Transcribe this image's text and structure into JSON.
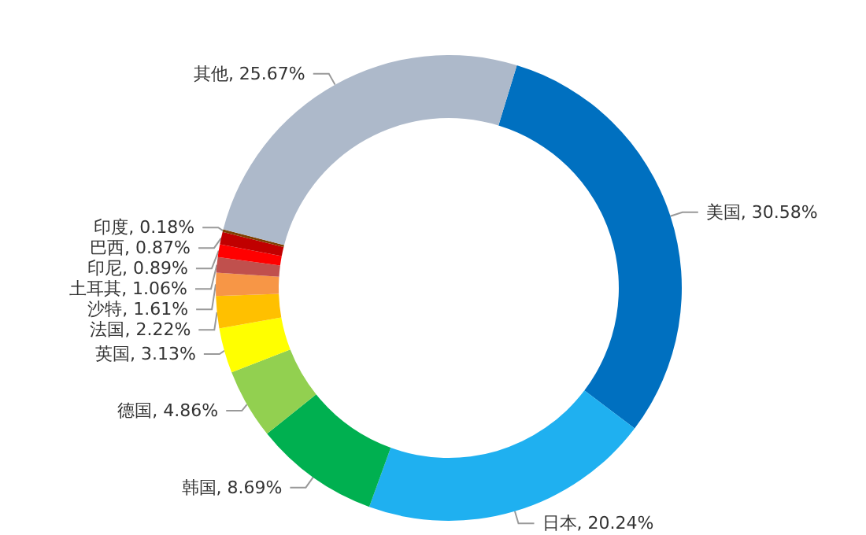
{
  "chart_data": {
    "type": "donut",
    "categories": [
      "美国",
      "日本",
      "韩国",
      "德国",
      "英国",
      "法国",
      "沙特",
      "土耳其",
      "印尼",
      "巴西",
      "印度",
      "其他"
    ],
    "values": [
      30.58,
      20.24,
      8.69,
      4.86,
      3.13,
      2.22,
      1.61,
      1.06,
      0.89,
      0.87,
      0.18,
      25.67
    ],
    "value_labels": [
      "30.58%",
      "20.24%",
      "8.69%",
      "4.86%",
      "3.13%",
      "2.22%",
      "1.61%",
      "1.06%",
      "0.89%",
      "0.87%",
      "0.18%",
      "25.67%"
    ],
    "colors": [
      "#0070c0",
      "#1fb0f0",
      "#00b050",
      "#92d050",
      "#ffff00",
      "#ffc000",
      "#f79646",
      "#c0504d",
      "#ff0000",
      "#c00000",
      "#7f3f00",
      "#adb9ca"
    ],
    "legend": false
  }
}
